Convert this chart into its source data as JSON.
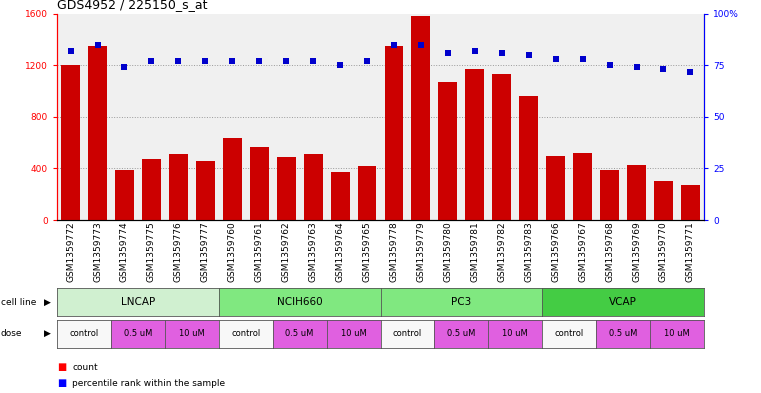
{
  "title": "GDS4952 / 225150_s_at",
  "samples": [
    "GSM1359772",
    "GSM1359773",
    "GSM1359774",
    "GSM1359775",
    "GSM1359776",
    "GSM1359777",
    "GSM1359760",
    "GSM1359761",
    "GSM1359762",
    "GSM1359763",
    "GSM1359764",
    "GSM1359765",
    "GSM1359778",
    "GSM1359779",
    "GSM1359780",
    "GSM1359781",
    "GSM1359782",
    "GSM1359783",
    "GSM1359766",
    "GSM1359767",
    "GSM1359768",
    "GSM1359769",
    "GSM1359770",
    "GSM1359771"
  ],
  "counts": [
    1200,
    1350,
    390,
    470,
    510,
    460,
    640,
    570,
    490,
    510,
    370,
    420,
    1350,
    1580,
    1070,
    1170,
    1130,
    960,
    500,
    520,
    390,
    430,
    300,
    270
  ],
  "percentile_ranks": [
    82,
    85,
    74,
    77,
    77,
    77,
    77,
    77,
    77,
    77,
    75,
    77,
    85,
    85,
    81,
    82,
    81,
    80,
    78,
    78,
    75,
    74,
    73,
    72
  ],
  "cell_lines": [
    {
      "label": "LNCAP",
      "start": 0,
      "end": 6,
      "color": "#d0f0d0"
    },
    {
      "label": "NCIH660",
      "start": 6,
      "end": 12,
      "color": "#80e880"
    },
    {
      "label": "PC3",
      "start": 12,
      "end": 18,
      "color": "#80e880"
    },
    {
      "label": "VCAP",
      "start": 18,
      "end": 24,
      "color": "#44cc44"
    }
  ],
  "dose_groups": [
    {
      "label": "control",
      "start": 0,
      "end": 2,
      "color": "#f8f8f8"
    },
    {
      "label": "0.5 uM",
      "start": 2,
      "end": 4,
      "color": "#e060e0"
    },
    {
      "label": "10 uM",
      "start": 4,
      "end": 6,
      "color": "#e060e0"
    },
    {
      "label": "control",
      "start": 6,
      "end": 8,
      "color": "#f8f8f8"
    },
    {
      "label": "0.5 uM",
      "start": 8,
      "end": 10,
      "color": "#e060e0"
    },
    {
      "label": "10 uM",
      "start": 10,
      "end": 12,
      "color": "#e060e0"
    },
    {
      "label": "control",
      "start": 12,
      "end": 14,
      "color": "#f8f8f8"
    },
    {
      "label": "0.5 uM",
      "start": 14,
      "end": 16,
      "color": "#e060e0"
    },
    {
      "label": "10 uM",
      "start": 16,
      "end": 18,
      "color": "#e060e0"
    },
    {
      "label": "control",
      "start": 18,
      "end": 20,
      "color": "#f8f8f8"
    },
    {
      "label": "0.5 uM",
      "start": 20,
      "end": 22,
      "color": "#e060e0"
    },
    {
      "label": "10 uM",
      "start": 22,
      "end": 24,
      "color": "#e060e0"
    }
  ],
  "bar_color": "#cc0000",
  "dot_color": "#0000cc",
  "ylim_left": [
    0,
    1600
  ],
  "ylim_right": [
    0,
    100
  ],
  "yticks_left": [
    0,
    400,
    800,
    1200,
    1600
  ],
  "yticks_right": [
    0,
    25,
    50,
    75,
    100
  ],
  "grid_vals": [
    400,
    800,
    1200
  ],
  "bg_color": "#ffffff",
  "plot_bg": "#f0f0f0",
  "title_fontsize": 9,
  "tick_fontsize": 6.5,
  "label_fontsize": 7.5
}
